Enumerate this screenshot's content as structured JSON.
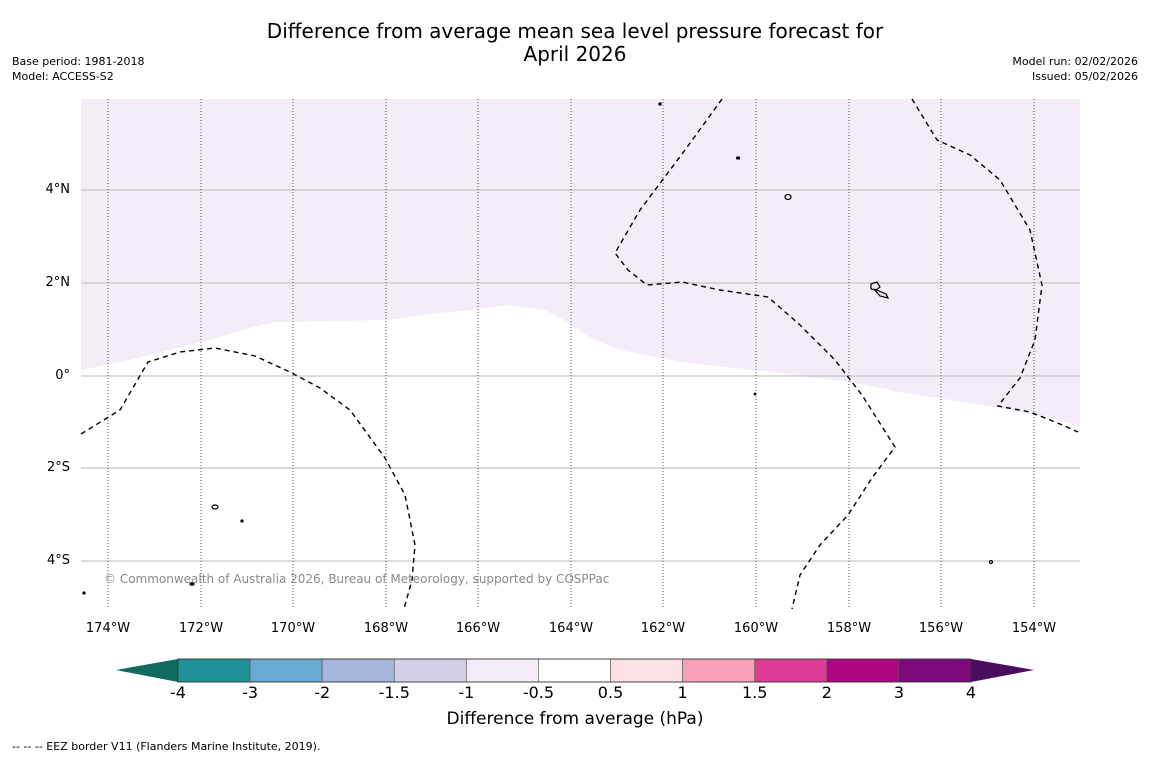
{
  "title_line1": "Difference from average mean sea level pressure forecast for",
  "title_line2": "April 2026",
  "meta": {
    "base_period": "Base period: 1981-2018",
    "model": "Model: ACCESS-S2",
    "model_run": "Model run: 02/02/2026",
    "issued": "Issued: 05/02/2026"
  },
  "lat_labels": [
    "4°N",
    "2°N",
    "0°",
    "2°S",
    "4°S"
  ],
  "lon_labels": [
    "174°W",
    "172°W",
    "170°W",
    "168°W",
    "166°W",
    "164°W",
    "162°W",
    "160°W",
    "158°W",
    "156°W",
    "154°W"
  ],
  "copyright": "© Commonwealth of Australia 2026, Bureau of Meteorology, supported by COSPPac",
  "colorbar": {
    "title": "Difference from average (hPa)",
    "ticks": [
      "-4",
      "-3",
      "-2",
      "-1.5",
      "-1",
      "-0.5",
      "0.5",
      "1",
      "1.5",
      "2",
      "3",
      "4"
    ],
    "colors": [
      "#0e6b5e",
      "#1f9198",
      "#6aa9cf",
      "#a5b7da",
      "#d2d0e6",
      "#f4ecf6",
      "#ffffff",
      "#fde0e3",
      "#f7a0b8",
      "#dc3c96",
      "#ad0682",
      "#7c0a7a",
      "#4a0c5f"
    ]
  },
  "footnote": "--  --  -- EEZ border V11 (Flanders Marine Institute, 2019)."
}
